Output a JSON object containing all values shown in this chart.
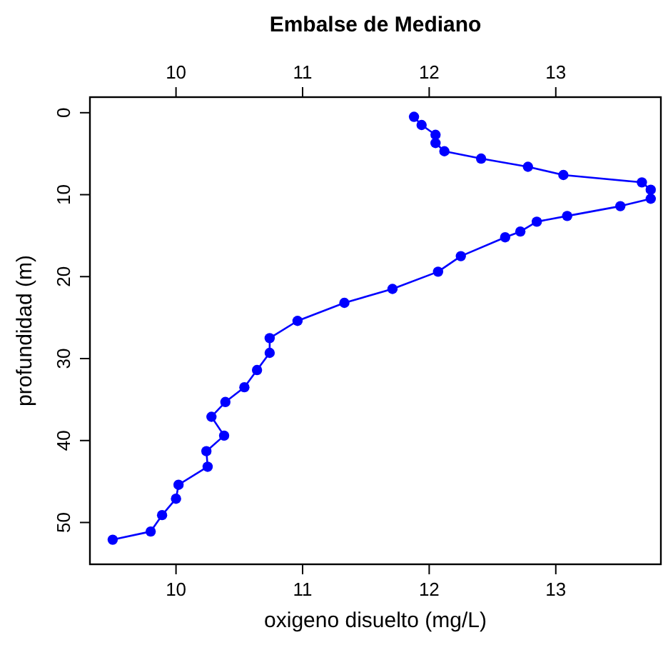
{
  "chart_data": {
    "type": "line",
    "title": "Embalse de Mediano",
    "xlabel": "oxigeno disuelto (mg/L)",
    "ylabel": "profundidad (m)",
    "xlim": [
      9.32,
      13.83
    ],
    "xticks": [
      10,
      11,
      12,
      13
    ],
    "x2lim": [
      9.32,
      13.83
    ],
    "x2ticks": [
      10,
      11,
      12,
      13
    ],
    "ylim": [
      55.1,
      -1.9
    ],
    "yticks": [
      0,
      10,
      20,
      30,
      40,
      50
    ],
    "marker": "circle",
    "line_style": "solid",
    "series": [
      {
        "color": "#0000ff",
        "x": [
          11.88,
          11.94,
          12.05,
          12.05,
          12.12,
          12.41,
          12.78,
          13.06,
          13.68,
          13.75,
          13.75,
          13.51,
          13.09,
          12.85,
          12.72,
          12.6,
          12.25,
          12.07,
          11.71,
          11.33,
          10.96,
          10.74,
          10.74,
          10.64,
          10.54,
          10.39,
          10.28,
          10.38,
          10.24,
          10.25,
          10.02,
          10.0,
          9.89,
          9.8,
          9.5
        ],
        "values": [
          0.5,
          1.5,
          2.7,
          3.7,
          4.7,
          5.6,
          6.6,
          7.6,
          8.5,
          9.4,
          10.5,
          11.4,
          12.6,
          13.3,
          14.5,
          15.2,
          17.5,
          19.4,
          21.5,
          23.2,
          25.4,
          27.5,
          29.3,
          31.4,
          33.5,
          35.3,
          37.1,
          39.4,
          41.3,
          43.2,
          45.4,
          47.1,
          49.1,
          51.1,
          52.1
        ]
      }
    ]
  }
}
